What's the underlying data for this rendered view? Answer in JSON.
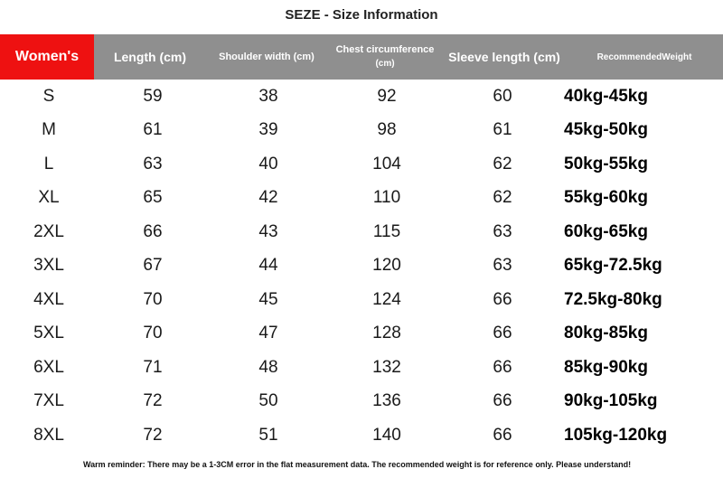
{
  "title": "SEZE - Size Information",
  "headers": {
    "womens": "Women's",
    "length": "Length (cm)",
    "shoulder": "Shoulder width (cm)",
    "chest_line1": "Chest circumference",
    "chest_line2": "(cm)",
    "sleeve": "Sleeve length (cm)",
    "weight": "RecommendedWeight"
  },
  "rows": [
    {
      "size": "S",
      "length": "59",
      "shoulder": "38",
      "chest": "92",
      "sleeve": "60",
      "weight": "40kg-45kg"
    },
    {
      "size": "M",
      "length": "61",
      "shoulder": "39",
      "chest": "98",
      "sleeve": "61",
      "weight": "45kg-50kg"
    },
    {
      "size": "L",
      "length": "63",
      "shoulder": "40",
      "chest": "104",
      "sleeve": "62",
      "weight": "50kg-55kg"
    },
    {
      "size": "XL",
      "length": "65",
      "shoulder": "42",
      "chest": "110",
      "sleeve": "62",
      "weight": "55kg-60kg"
    },
    {
      "size": "2XL",
      "length": "66",
      "shoulder": "43",
      "chest": "115",
      "sleeve": "63",
      "weight": "60kg-65kg"
    },
    {
      "size": "3XL",
      "length": "67",
      "shoulder": "44",
      "chest": "120",
      "sleeve": "63",
      "weight": "65kg-72.5kg"
    },
    {
      "size": "4XL",
      "length": "70",
      "shoulder": "45",
      "chest": "124",
      "sleeve": "66",
      "weight": "72.5kg-80kg"
    },
    {
      "size": "5XL",
      "length": "70",
      "shoulder": "47",
      "chest": "128",
      "sleeve": "66",
      "weight": "80kg-85kg"
    },
    {
      "size": "6XL",
      "length": "71",
      "shoulder": "48",
      "chest": "132",
      "sleeve": "66",
      "weight": "85kg-90kg"
    },
    {
      "size": "7XL",
      "length": "72",
      "shoulder": "50",
      "chest": "136",
      "sleeve": "66",
      "weight": "90kg-105kg"
    },
    {
      "size": "8XL",
      "length": "72",
      "shoulder": "51",
      "chest": "140",
      "sleeve": "66",
      "weight": "105kg-120kg"
    }
  ],
  "note": "Warm reminder: There may be a 1-3CM error in the flat measurement data. The recommended weight is for reference only. Please understand!",
  "colors": {
    "header_bg": "#8f8f8f",
    "womens_bg": "#ee1111"
  }
}
